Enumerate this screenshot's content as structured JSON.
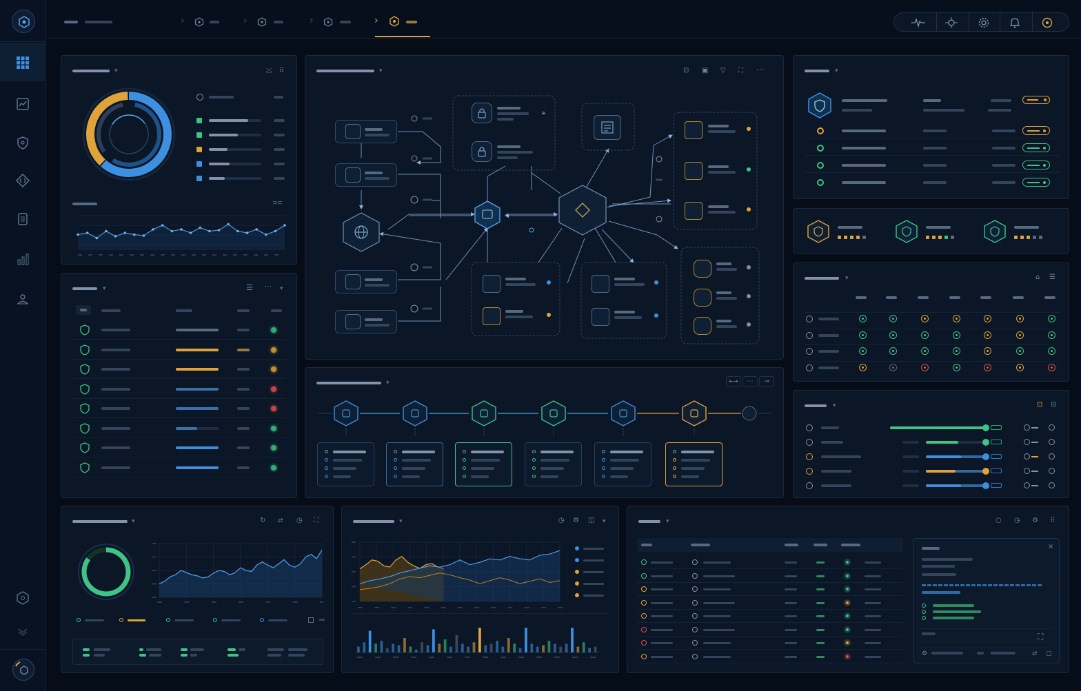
{
  "colors": {
    "bg": "#060d18",
    "panel": "#0b1626",
    "blue": "#3d8fe0",
    "orange": "#e0a33a",
    "green": "#3ec486",
    "red": "#e0504a",
    "muted": "#33455c"
  },
  "nav": {
    "logo_icon": "hexagon-logo-icon",
    "items": [
      {
        "icon": "grid-icon",
        "active": true
      },
      {
        "icon": "chart-board-icon"
      },
      {
        "icon": "shield-icon"
      },
      {
        "icon": "code-diamond-icon"
      },
      {
        "icon": "document-icon"
      },
      {
        "icon": "bar-chart-icon"
      },
      {
        "icon": "network-user-icon"
      }
    ],
    "bottom_items": [
      {
        "icon": "hexagon-settings-icon"
      },
      {
        "icon": "user-avatar-icon"
      }
    ]
  },
  "header": {
    "breadcrumb_icons": [
      "hexagon-icon",
      "hexagon-icon",
      "hexagon-icon",
      "hexagon-icon"
    ],
    "active_tab_index": 3,
    "toolbar_icons": [
      "pulse-icon",
      "flow-icon",
      "gear-icon",
      "bell-icon",
      "alert-ring-icon"
    ]
  },
  "donut_panel": {
    "donut_segments": [
      {
        "color": "#3d8fe0",
        "fraction": 0.62
      },
      {
        "color": "#e0a33a",
        "fraction": 0.38
      }
    ],
    "legend_colors": [
      "#3ec486",
      "#3ec486",
      "#e0a33a",
      "#3d8fe0",
      "#3d8fe0"
    ],
    "legend_fill": [
      0.75,
      0.55,
      0.35,
      0.4,
      0.3
    ],
    "sparkline": [
      0.45,
      0.5,
      0.35,
      0.55,
      0.4,
      0.5,
      0.45,
      0.42,
      0.6,
      0.72,
      0.55,
      0.6,
      0.5,
      0.65,
      0.55,
      0.58,
      0.75,
      0.55,
      0.5,
      0.6,
      0.45,
      0.55,
      0.72
    ]
  },
  "list_panel": {
    "rows": [
      {
        "bar_color": "#566a82",
        "fill": 1.0,
        "status": "#3ec486"
      },
      {
        "bar_color": "#e0a33a",
        "fill": 1.0,
        "status": "#e0a33a"
      },
      {
        "bar_color": "#e0a33a",
        "fill": 1.0,
        "status": "#e0a33a"
      },
      {
        "bar_color": "#3d6fa8",
        "fill": 1.0,
        "status": "#e0504a"
      },
      {
        "bar_color": "#3d6fa8",
        "fill": 1.0,
        "status": "#e0504a"
      },
      {
        "bar_color": "#3d6fa8",
        "fill": 0.5,
        "status": "#3ec486"
      },
      {
        "bar_color": "#3d8fe0",
        "fill": 1.0,
        "status": "#3ec486"
      },
      {
        "bar_color": "#3d8fe0",
        "fill": 1.0,
        "status": "#3ec486"
      }
    ]
  },
  "topology_panel": {
    "toolbar_icons": [
      "image-icon",
      "copy-icon",
      "filter-icon",
      "expand-icon",
      "more-icon"
    ],
    "center_icon": "shield-hex-icon",
    "globe_icon": "globe-icon",
    "hub_icon": "id-card-icon",
    "doc_icon": "document-icon"
  },
  "status_panel": {
    "rows": [
      {
        "color": "#e0a33a",
        "pill": "#e0a33a"
      },
      {
        "color": "#3ec486",
        "pill": "#3ec486"
      },
      {
        "color": "#3ec486",
        "pill": "#3ec486"
      },
      {
        "color": "#3ec486",
        "pill": "#3ec486"
      }
    ]
  },
  "badges_panel": {
    "badges": [
      {
        "color": "#e0a33a",
        "dots": [
          "#e0a33a",
          "#e0a33a",
          "#e0a33a",
          "#e0a33a",
          "#566a82"
        ]
      },
      {
        "color": "#3ec486",
        "dots": [
          "#e0a33a",
          "#e0a33a",
          "#e0a33a",
          "#3ec486",
          "#566a82"
        ]
      },
      {
        "color": "#3ec486",
        "dots": [
          "#e0a33a",
          "#e0a33a",
          "#e0a33a",
          "#566a82",
          "#566a82"
        ]
      }
    ]
  },
  "matrix_panel": {
    "rows": [
      [
        "#3ec486",
        "#3ec486",
        "#e0a33a",
        "#e0a33a",
        "#e0a33a",
        "#e0a33a",
        "#3ec486"
      ],
      [
        "#3ec486",
        "#3ec486",
        "#3ec486",
        "#3ec486",
        "#e0a33a",
        "#e0a33a",
        "#3ec486"
      ],
      [
        "#3ec486",
        "#3ec486",
        "#3ec486",
        "#3ec486",
        "#e0a33a",
        "#3ec486",
        "#3ec486"
      ],
      [
        "#e0a33a",
        "#566a82",
        "#e0504a",
        "#3ec486",
        "#e0504a",
        "#e0a33a",
        "#e0504a"
      ]
    ]
  },
  "progress_panel": {
    "rows": [
      {
        "color": "#3ec486",
        "fill": 0.9,
        "user": "#7f93aa"
      },
      {
        "color": "#3ec486",
        "fill": 0.55,
        "user": "#7f93aa"
      },
      {
        "color": "#3d8fe0",
        "fill": 0.6,
        "user": "#e0a33a"
      },
      {
        "color": "#e0a33a",
        "fill": 0.5,
        "user": "#e0a33a"
      },
      {
        "color": "#3d8fe0",
        "fill": 0.6,
        "user": "#7f93aa"
      }
    ]
  },
  "pipeline_panel": {
    "steps": [
      {
        "color": "#3d8fe0",
        "icon": "shield-icon"
      },
      {
        "color": "#3d8fe0",
        "icon": "shield-icon"
      },
      {
        "color": "#3ec486",
        "icon": "shield-icon"
      },
      {
        "color": "#3ec486",
        "icon": "network-icon"
      },
      {
        "color": "#3d8fe0",
        "icon": "info-icon"
      },
      {
        "color": "#e0a33a",
        "icon": "settings-icon"
      }
    ]
  },
  "gauge_panel": {
    "gauge_value": "",
    "gauge_fraction": 0.85,
    "series": [
      0.25,
      0.3,
      0.38,
      0.42,
      0.5,
      0.46,
      0.42,
      0.4,
      0.36,
      0.38,
      0.45,
      0.5,
      0.48,
      0.42,
      0.46,
      0.55,
      0.5,
      0.48,
      0.6,
      0.66,
      0.6,
      0.55,
      0.62,
      0.7,
      0.6,
      0.56,
      0.62,
      0.75,
      0.8,
      0.72,
      0.88
    ],
    "legend_colors": [
      "#3ec486",
      "#e0a33a",
      "#3ec486",
      "#3ec486",
      "#3d8fe0"
    ]
  },
  "area_panel": {
    "orange_series": [
      0.55,
      0.62,
      0.7,
      0.68,
      0.6,
      0.58,
      0.7,
      0.76,
      0.66,
      0.6,
      0.56,
      0.62,
      0.64,
      0.58,
      0.55
    ],
    "blue_series": [
      0.3,
      0.35,
      0.38,
      0.42,
      0.48,
      0.52,
      0.56,
      0.6,
      0.58,
      0.62,
      0.7,
      0.62,
      0.66,
      0.72,
      0.7,
      0.76,
      0.72,
      0.7,
      0.78,
      0.8,
      0.86
    ],
    "blue_low": [
      0.2,
      0.22,
      0.25,
      0.3,
      0.38,
      0.42,
      0.4,
      0.44,
      0.48,
      0.45,
      0.4,
      0.36,
      0.3,
      0.35,
      0.4,
      0.36,
      0.3,
      0.34,
      0.38,
      0.32,
      0.35
    ],
    "legend_colors": [
      "#3d8fe0",
      "#3d8fe0",
      "#e0a33a",
      "#e0a33a",
      "#e0a33a"
    ],
    "bars": [
      0.2,
      0.35,
      0.75,
      0.3,
      0.4,
      0.15,
      0.3,
      0.25,
      0.5,
      0.2,
      0.1,
      0.35,
      0.25,
      0.8,
      0.3,
      0.45,
      0.2,
      0.6,
      0.3,
      0.2,
      0.35,
      0.85,
      0.25,
      0.3,
      0.4,
      0.2,
      0.5,
      0.3,
      0.15,
      0.85,
      0.3,
      0.2,
      0.25,
      0.4,
      0.3,
      0.2,
      0.3,
      0.85,
      0.2,
      0.35,
      0.15,
      0.2
    ],
    "bar_colors": [
      "#3d8fe0",
      "#3d8fe0",
      "#e0a33a",
      "#3ec486",
      "#3d8fe0",
      "#566a82"
    ]
  },
  "event_panel": {
    "rows": [
      {
        "color": "#3ec486",
        "status": "#3ec486"
      },
      {
        "color": "#3ec486",
        "status": "#3ec486"
      },
      {
        "color": "#e0a33a",
        "status": "#3ec486"
      },
      {
        "color": "#e0a33a",
        "status": "#e0a33a"
      },
      {
        "color": "#e0a33a",
        "status": "#3ec486"
      },
      {
        "color": "#e0504a",
        "status": "#3ec486"
      },
      {
        "color": "#e0504a",
        "status": "#e0a33a"
      },
      {
        "color": "#e0a33a",
        "status": "#e0504a"
      }
    ]
  }
}
